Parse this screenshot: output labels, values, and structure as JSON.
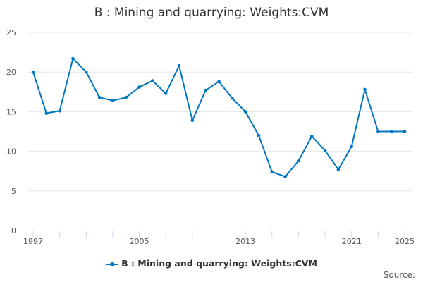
{
  "chart_data": {
    "type": "line",
    "title": "B : Mining and quarrying: Weights:CVM",
    "xlabel": "",
    "ylabel": "",
    "x": [
      1997,
      1998,
      1999,
      2000,
      2001,
      2002,
      2003,
      2004,
      2005,
      2006,
      2007,
      2008,
      2009,
      2010,
      2011,
      2012,
      2013,
      2014,
      2015,
      2016,
      2017,
      2018,
      2019,
      2020,
      2021,
      2022,
      2023,
      2024,
      2025
    ],
    "series": [
      {
        "name": "B : Mining and quarrying: Weights:CVM",
        "color": "#0077c0",
        "values": [
          20.0,
          14.8,
          15.1,
          21.7,
          20.0,
          16.8,
          16.4,
          16.8,
          18.1,
          18.9,
          17.3,
          20.8,
          13.9,
          17.7,
          18.8,
          16.7,
          15.0,
          12.0,
          7.4,
          6.8,
          8.8,
          11.9,
          10.1,
          7.7,
          10.6,
          17.8,
          12.5,
          12.5,
          12.5
        ]
      }
    ],
    "ylim": [
      0,
      25
    ],
    "yticks": [
      "0",
      "5",
      "10",
      "15",
      "20",
      "25"
    ],
    "xticks": [
      "1997",
      "2005",
      "2013",
      "2021",
      "2025"
    ],
    "grid": true,
    "legend": "bottom"
  },
  "source_label": "Source:"
}
